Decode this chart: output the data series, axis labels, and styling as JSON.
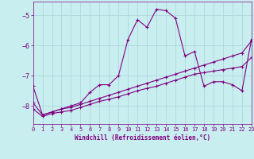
{
  "xlabel": "Windchill (Refroidissement éolien,°C)",
  "background_color": "#c8eef0",
  "grid_color": "#b0d8dc",
  "line_color": "#800080",
  "ylim": [
    -8.6,
    -4.55
  ],
  "xlim": [
    0,
    23
  ],
  "yticks": [
    -8,
    -7,
    -6,
    -5
  ],
  "xticks": [
    0,
    1,
    2,
    3,
    4,
    5,
    6,
    7,
    8,
    9,
    10,
    11,
    12,
    13,
    14,
    15,
    16,
    17,
    18,
    19,
    20,
    21,
    22,
    23
  ],
  "series1_x": [
    0,
    1,
    2,
    3,
    4,
    5,
    6,
    7,
    8,
    9,
    10,
    11,
    12,
    13,
    14,
    15,
    16,
    17,
    18,
    19,
    20,
    21,
    22,
    23
  ],
  "series1_y": [
    -7.35,
    -8.3,
    -8.2,
    -8.1,
    -8.0,
    -7.9,
    -7.55,
    -7.3,
    -7.3,
    -7.0,
    -5.8,
    -5.15,
    -5.4,
    -4.8,
    -4.85,
    -5.1,
    -6.35,
    -6.2,
    -7.35,
    -7.2,
    -7.2,
    -7.3,
    -7.5,
    -5.8
  ],
  "series2_x": [
    0,
    1,
    2,
    3,
    4,
    5,
    6,
    7,
    8,
    9,
    10,
    11,
    12,
    13,
    14,
    15,
    16,
    17,
    18,
    19,
    20,
    21,
    22,
    23
  ],
  "series2_y": [
    -7.9,
    -8.3,
    -8.2,
    -8.1,
    -8.05,
    -7.95,
    -7.85,
    -7.75,
    -7.65,
    -7.55,
    -7.45,
    -7.35,
    -7.25,
    -7.15,
    -7.05,
    -6.95,
    -6.85,
    -6.75,
    -6.65,
    -6.55,
    -6.45,
    -6.35,
    -6.25,
    -5.85
  ],
  "series3_x": [
    0,
    1,
    2,
    3,
    4,
    5,
    6,
    7,
    8,
    9,
    10,
    11,
    12,
    13,
    14,
    15,
    16,
    17,
    18,
    19,
    20,
    21,
    22,
    23
  ],
  "series3_y": [
    -8.1,
    -8.35,
    -8.25,
    -8.2,
    -8.15,
    -8.05,
    -7.95,
    -7.85,
    -7.78,
    -7.7,
    -7.6,
    -7.5,
    -7.42,
    -7.35,
    -7.25,
    -7.15,
    -7.05,
    -6.95,
    -6.9,
    -6.85,
    -6.8,
    -6.75,
    -6.7,
    -6.4
  ]
}
